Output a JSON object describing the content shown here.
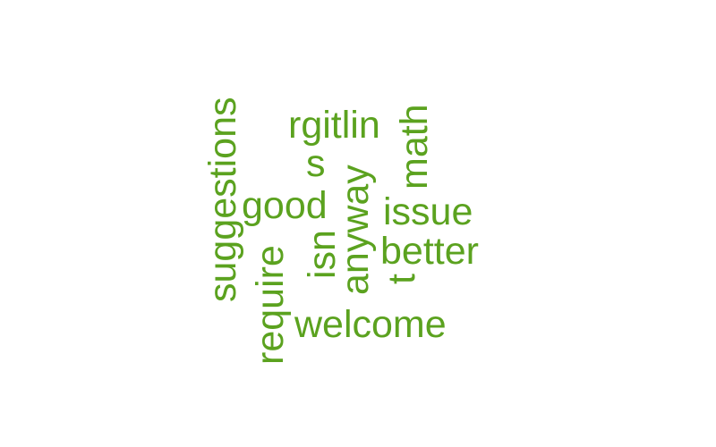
{
  "word_cloud": {
    "color": "#5ba21f",
    "words": [
      {
        "text": "suggestions",
        "orientation": "vertical"
      },
      {
        "text": "rgitlin",
        "orientation": "horizontal"
      },
      {
        "text": "math",
        "orientation": "vertical"
      },
      {
        "text": "s",
        "orientation": "horizontal"
      },
      {
        "text": "anyway",
        "orientation": "vertical"
      },
      {
        "text": "good",
        "orientation": "horizontal"
      },
      {
        "text": "issue",
        "orientation": "horizontal"
      },
      {
        "text": "isn",
        "orientation": "vertical"
      },
      {
        "text": "better",
        "orientation": "horizontal"
      },
      {
        "text": "require",
        "orientation": "vertical"
      },
      {
        "text": "t",
        "orientation": "vertical"
      },
      {
        "text": "welcome",
        "orientation": "horizontal"
      }
    ]
  }
}
